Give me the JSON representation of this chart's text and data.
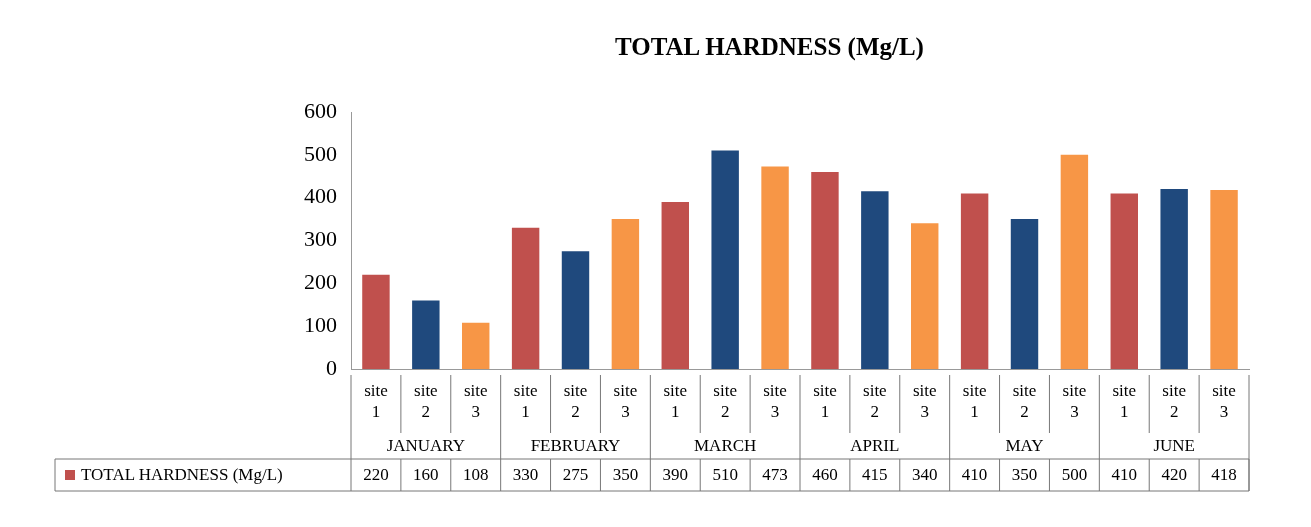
{
  "chart_data": {
    "type": "bar",
    "title": "TOTAL HARDNESS (Mg/L)",
    "categories": [
      "site 1",
      "site 2",
      "site 3",
      "site 1",
      "site 2",
      "site 3",
      "site 1",
      "site 2",
      "site 3",
      "site 1",
      "site 2",
      "site 3",
      "site 1",
      "site 2",
      "site 3",
      "site 1",
      "site 2",
      "site 3"
    ],
    "annotations": [
      "JANUARY",
      "FEBRUARY",
      "MARCH",
      "APRIL",
      "MAY",
      "JUNE"
    ],
    "series": [
      {
        "name": "TOTAL HARDNESS (Mg/L)",
        "values": [
          220,
          160,
          108,
          330,
          275,
          350,
          390,
          510,
          473,
          460,
          415,
          340,
          410,
          350,
          500,
          410,
          420,
          418
        ]
      }
    ],
    "colors": [
      "#c0504d",
      "#1f497d",
      "#f79646",
      "#c0504d",
      "#1f497d",
      "#f79646",
      "#c0504d",
      "#1f497d",
      "#f79646",
      "#c0504d",
      "#1f497d",
      "#f79646",
      "#c0504d",
      "#1f497d",
      "#f79646",
      "#c0504d",
      "#1f497d",
      "#f79646"
    ],
    "ylim": [
      0,
      600
    ],
    "yticks": [
      0,
      100,
      200,
      300,
      400,
      500,
      600
    ],
    "grid": false,
    "legend": "bottom",
    "data_labels": true
  }
}
